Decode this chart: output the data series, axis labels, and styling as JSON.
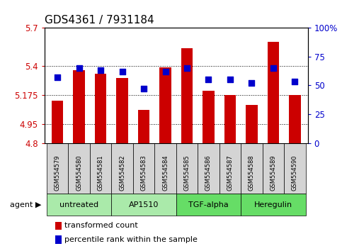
{
  "title": "GDS4361 / 7931184",
  "samples": [
    "GSM554579",
    "GSM554580",
    "GSM554581",
    "GSM554582",
    "GSM554583",
    "GSM554584",
    "GSM554585",
    "GSM554586",
    "GSM554587",
    "GSM554588",
    "GSM554589",
    "GSM554590"
  ],
  "red_values": [
    5.13,
    5.37,
    5.34,
    5.31,
    5.06,
    5.39,
    5.54,
    5.21,
    5.175,
    5.1,
    5.59,
    5.175
  ],
  "blue_pct": [
    57,
    65,
    63,
    62,
    47,
    62,
    65,
    55,
    55,
    52,
    65,
    53
  ],
  "ylim_left": [
    4.8,
    5.7
  ],
  "ylim_right": [
    0,
    100
  ],
  "yticks_left": [
    4.8,
    4.95,
    5.175,
    5.4,
    5.7
  ],
  "yticks_right": [
    0,
    25,
    50,
    75,
    100
  ],
  "ytick_labels_left": [
    "4.8",
    "4.95",
    "5.175",
    "5.4",
    "5.7"
  ],
  "ytick_labels_right": [
    "0",
    "25",
    "50",
    "75",
    "100%"
  ],
  "hlines": [
    5.4,
    5.175,
    4.95
  ],
  "agents": [
    {
      "label": "untreated",
      "start": 0,
      "end": 3,
      "color": "#aaeaaa"
    },
    {
      "label": "AP1510",
      "start": 3,
      "end": 6,
      "color": "#aaeaaa"
    },
    {
      "label": "TGF-alpha",
      "start": 6,
      "end": 9,
      "color": "#66dd66"
    },
    {
      "label": "Heregulin",
      "start": 9,
      "end": 12,
      "color": "#66dd66"
    }
  ],
  "bar_color": "#cc0000",
  "dot_color": "#0000cc",
  "bar_bottom": 4.8,
  "bar_width": 0.55,
  "dot_size": 30,
  "legend_items": [
    {
      "color": "#cc0000",
      "label": "transformed count"
    },
    {
      "color": "#0000cc",
      "label": "percentile rank within the sample"
    }
  ],
  "left_tick_color": "#cc0000",
  "right_tick_color": "#0000cc",
  "title_fontsize": 11,
  "tick_fontsize": 8.5,
  "sample_fontsize": 6,
  "agent_fontsize": 8,
  "legend_fontsize": 8,
  "sample_box_color": "#d4d4d4",
  "plot_bg": "#ffffff",
  "sample_area_bg": "#d4d4d4"
}
